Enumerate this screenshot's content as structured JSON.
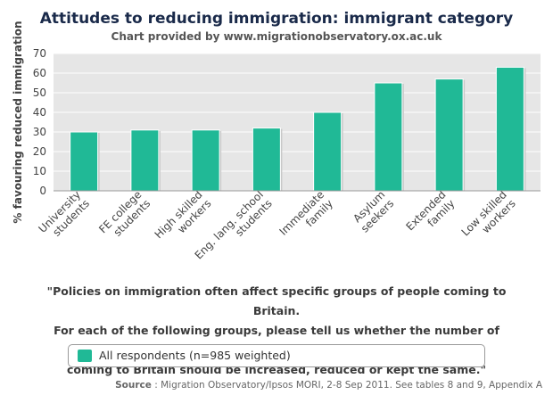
{
  "chart_data": {
    "type": "bar",
    "title": "Attitudes to reducing immigration: immigrant category",
    "subtitle": "Chart provided by www.migrationobservatory.ox.ac.uk",
    "ylabel": "% favouring reduced immigration",
    "xlabel": "",
    "ylim": [
      0,
      70
    ],
    "yticks": [
      0,
      10,
      20,
      30,
      40,
      50,
      60,
      70
    ],
    "grid": true,
    "categories": [
      [
        "University",
        "students"
      ],
      [
        "FE college",
        "students"
      ],
      [
        "High skilled",
        "workers"
      ],
      [
        "Eng. lang. school",
        "students"
      ],
      [
        "Immediate",
        "family"
      ],
      [
        "Asylum",
        "seekers"
      ],
      [
        "Extended",
        "family"
      ],
      [
        "Low skilled",
        "workers"
      ]
    ],
    "series": [
      {
        "name": "All respondents (n=985 weighted)",
        "color": "#20b996",
        "values": [
          30,
          31,
          31,
          32,
          40,
          55,
          57,
          63
        ]
      }
    ]
  },
  "question": [
    "\"Policies on immigration often affect specific groups of people coming to Britain.",
    "For each of the following groups, please tell us whether the number of people",
    "coming to Britain should be increased, reduced or kept the same.\""
  ],
  "source": {
    "label": "Source",
    "text": " : Migration Observatory/Ipsos MORI, 2-8 Sep 2011. See tables 8 and 9, Appendix A"
  }
}
